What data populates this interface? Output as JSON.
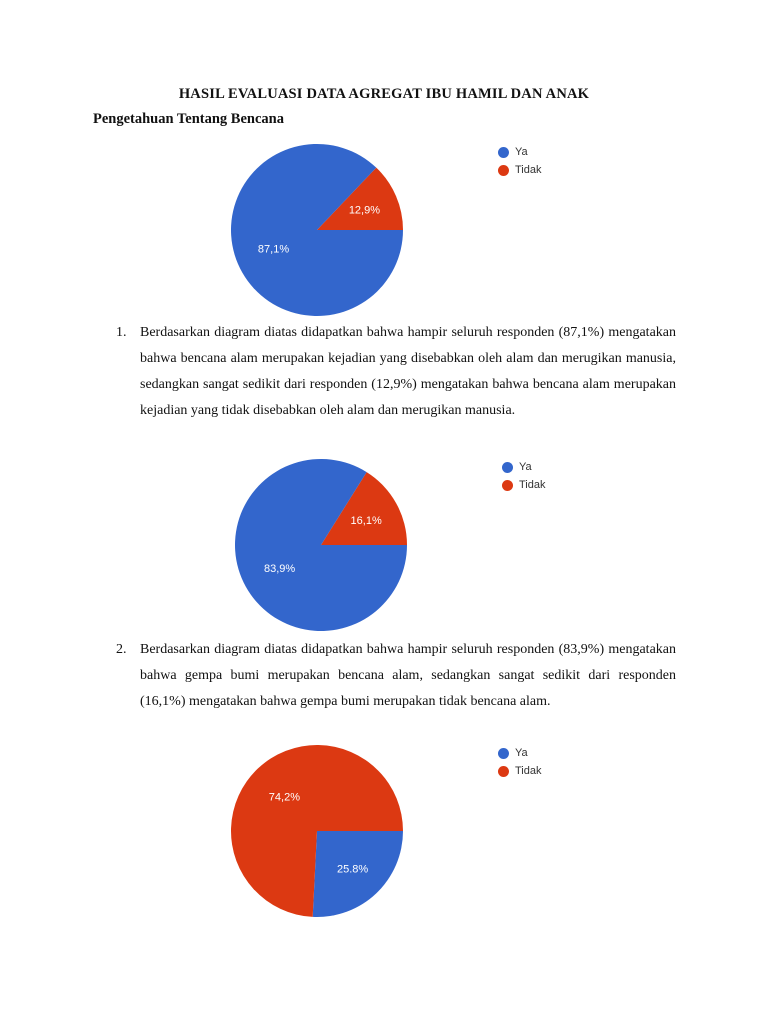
{
  "document": {
    "title": "HASIL EVALUASI DATA AGREGAT IBU HAMIL DAN ANAK",
    "section_heading": "Pengetahuan Tentang Bencana"
  },
  "colors": {
    "ya": "#3366cc",
    "tidak": "#dc3912"
  },
  "legend": {
    "ya": "Ya",
    "tidak": "Tidak"
  },
  "paragraphs": [
    {
      "number": "1.",
      "text": "Berdasarkan diagram diatas didapatkan bahwa hampir seluruh responden (87,1%) mengatakan bahwa bencana alam merupakan kejadian yang disebabkan oleh alam dan merugikan manusia, sedangkan sangat sedikit dari responden (12,9%) mengatakan bahwa bencana alam merupakan kejadian yang tidak disebabkan oleh alam dan merugikan manusia."
    },
    {
      "number": "2.",
      "text": "Berdasarkan diagram diatas didapatkan bahwa hampir seluruh responden (83,9%) mengatakan bahwa gempa bumi merupakan bencana alam, sedangkan sangat sedikit dari responden (16,1%) mengatakan bahwa gempa bumi merupakan tidak bencana alam."
    }
  ],
  "chart_data": [
    {
      "type": "pie",
      "categories": [
        "Ya",
        "Tidak"
      ],
      "values": [
        87.1,
        12.9
      ],
      "labels": [
        "87,1%",
        "12,9%"
      ],
      "legend_position": "right"
    },
    {
      "type": "pie",
      "categories": [
        "Ya",
        "Tidak"
      ],
      "values": [
        83.9,
        16.1
      ],
      "labels": [
        "83,9%",
        "16,1%"
      ],
      "legend_position": "right"
    },
    {
      "type": "pie",
      "categories": [
        "Ya",
        "Tidak"
      ],
      "values": [
        25.8,
        74.2
      ],
      "labels": [
        "25.8%",
        "74,2%"
      ],
      "legend_position": "right"
    }
  ]
}
